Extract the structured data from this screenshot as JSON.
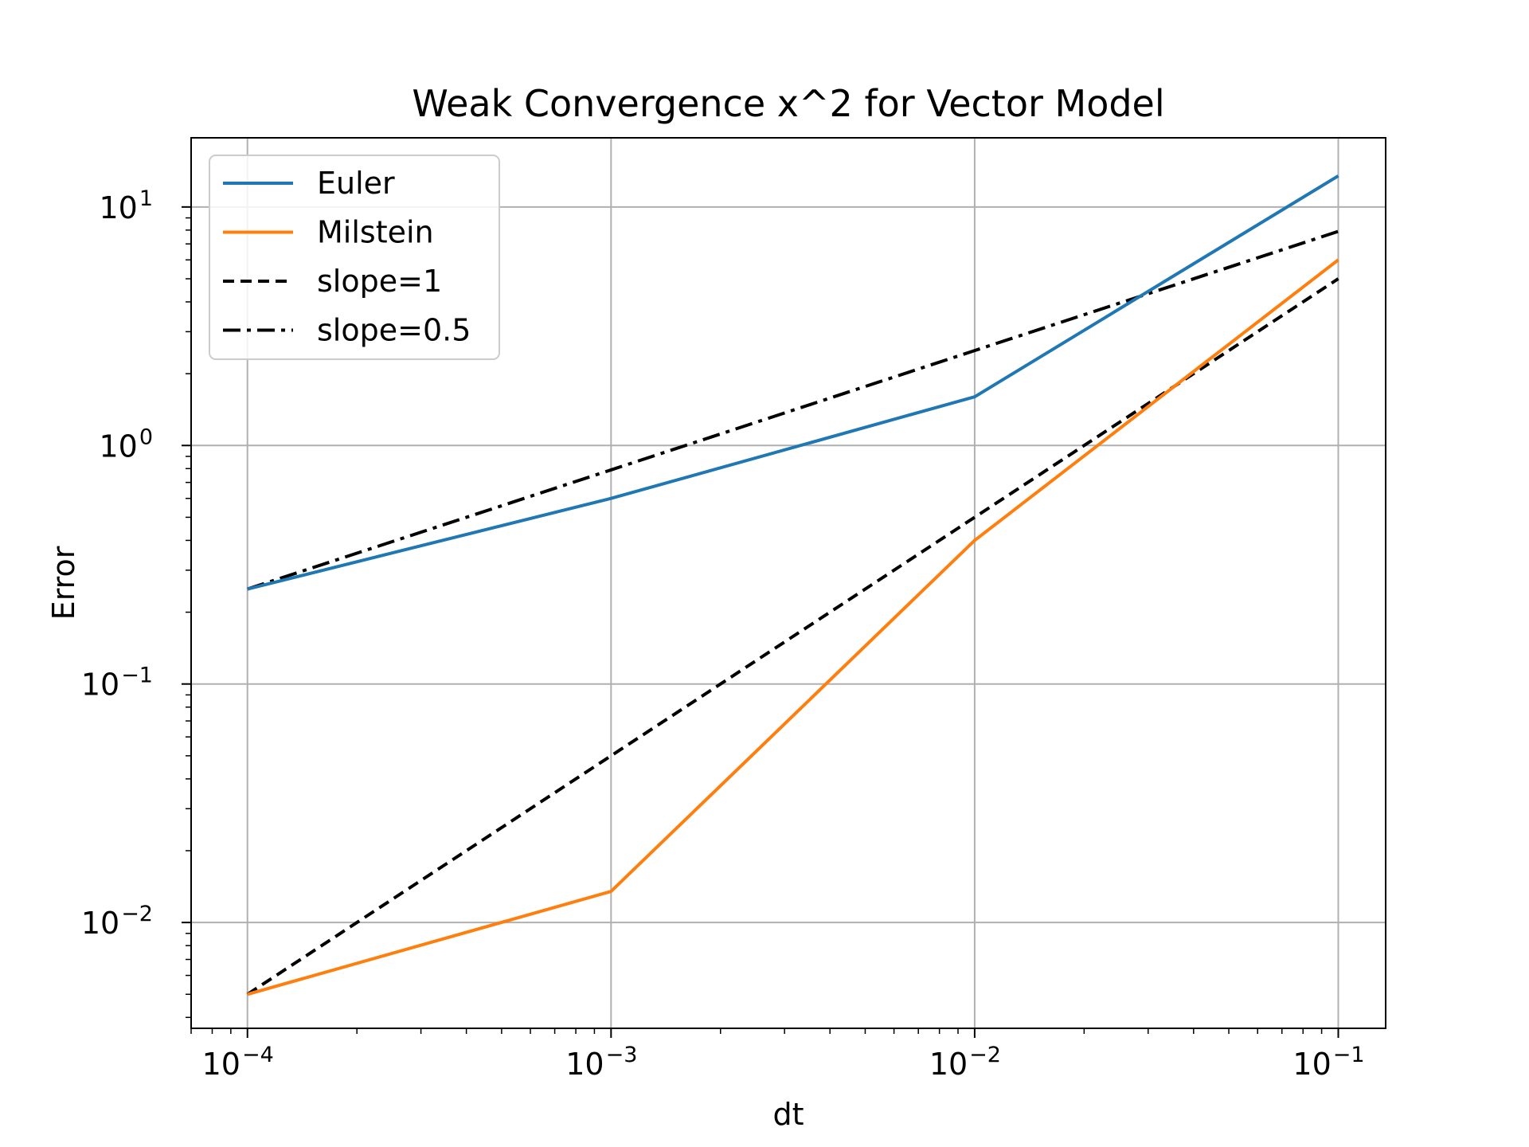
{
  "chart_data": {
    "type": "line",
    "title": "Weak Convergence x^2 for Vector Model",
    "xlabel": "dt",
    "ylabel": "Error",
    "xscale": "log",
    "yscale": "log",
    "xlim": [
      7e-05,
      0.135
    ],
    "ylim": [
      0.0036,
      19.5
    ],
    "grid": true,
    "legend_position": "top-left",
    "x_ticks": [
      {
        "value": 0.0001,
        "base": "10",
        "exp": "−4"
      },
      {
        "value": 0.001,
        "base": "10",
        "exp": "−3"
      },
      {
        "value": 0.01,
        "base": "10",
        "exp": "−2"
      },
      {
        "value": 0.1,
        "base": "10",
        "exp": "−1"
      }
    ],
    "y_ticks": [
      {
        "value": 0.01,
        "base": "10",
        "exp": "−2"
      },
      {
        "value": 0.1,
        "base": "10",
        "exp": "−1"
      },
      {
        "value": 1,
        "base": "10",
        "exp": "0"
      },
      {
        "value": 10,
        "base": "10",
        "exp": "1"
      }
    ],
    "x": [
      0.0001,
      0.001,
      0.01,
      0.1
    ],
    "series": [
      {
        "name": "Euler",
        "values": [
          0.25,
          0.6,
          1.6,
          13.5
        ],
        "color": "#1f77b4",
        "dash": "solid"
      },
      {
        "name": "Milstein",
        "values": [
          0.005,
          0.0135,
          0.4,
          6.0
        ],
        "color": "#ff7f0e",
        "dash": "solid"
      },
      {
        "name": "slope=1",
        "values": [
          0.005,
          0.05,
          0.5,
          5.0
        ],
        "color": "#000000",
        "dash": "dashed"
      },
      {
        "name": "slope=0.5",
        "values": [
          0.25,
          0.79,
          2.5,
          7.9
        ],
        "color": "#000000",
        "dash": "dashdot"
      }
    ]
  }
}
